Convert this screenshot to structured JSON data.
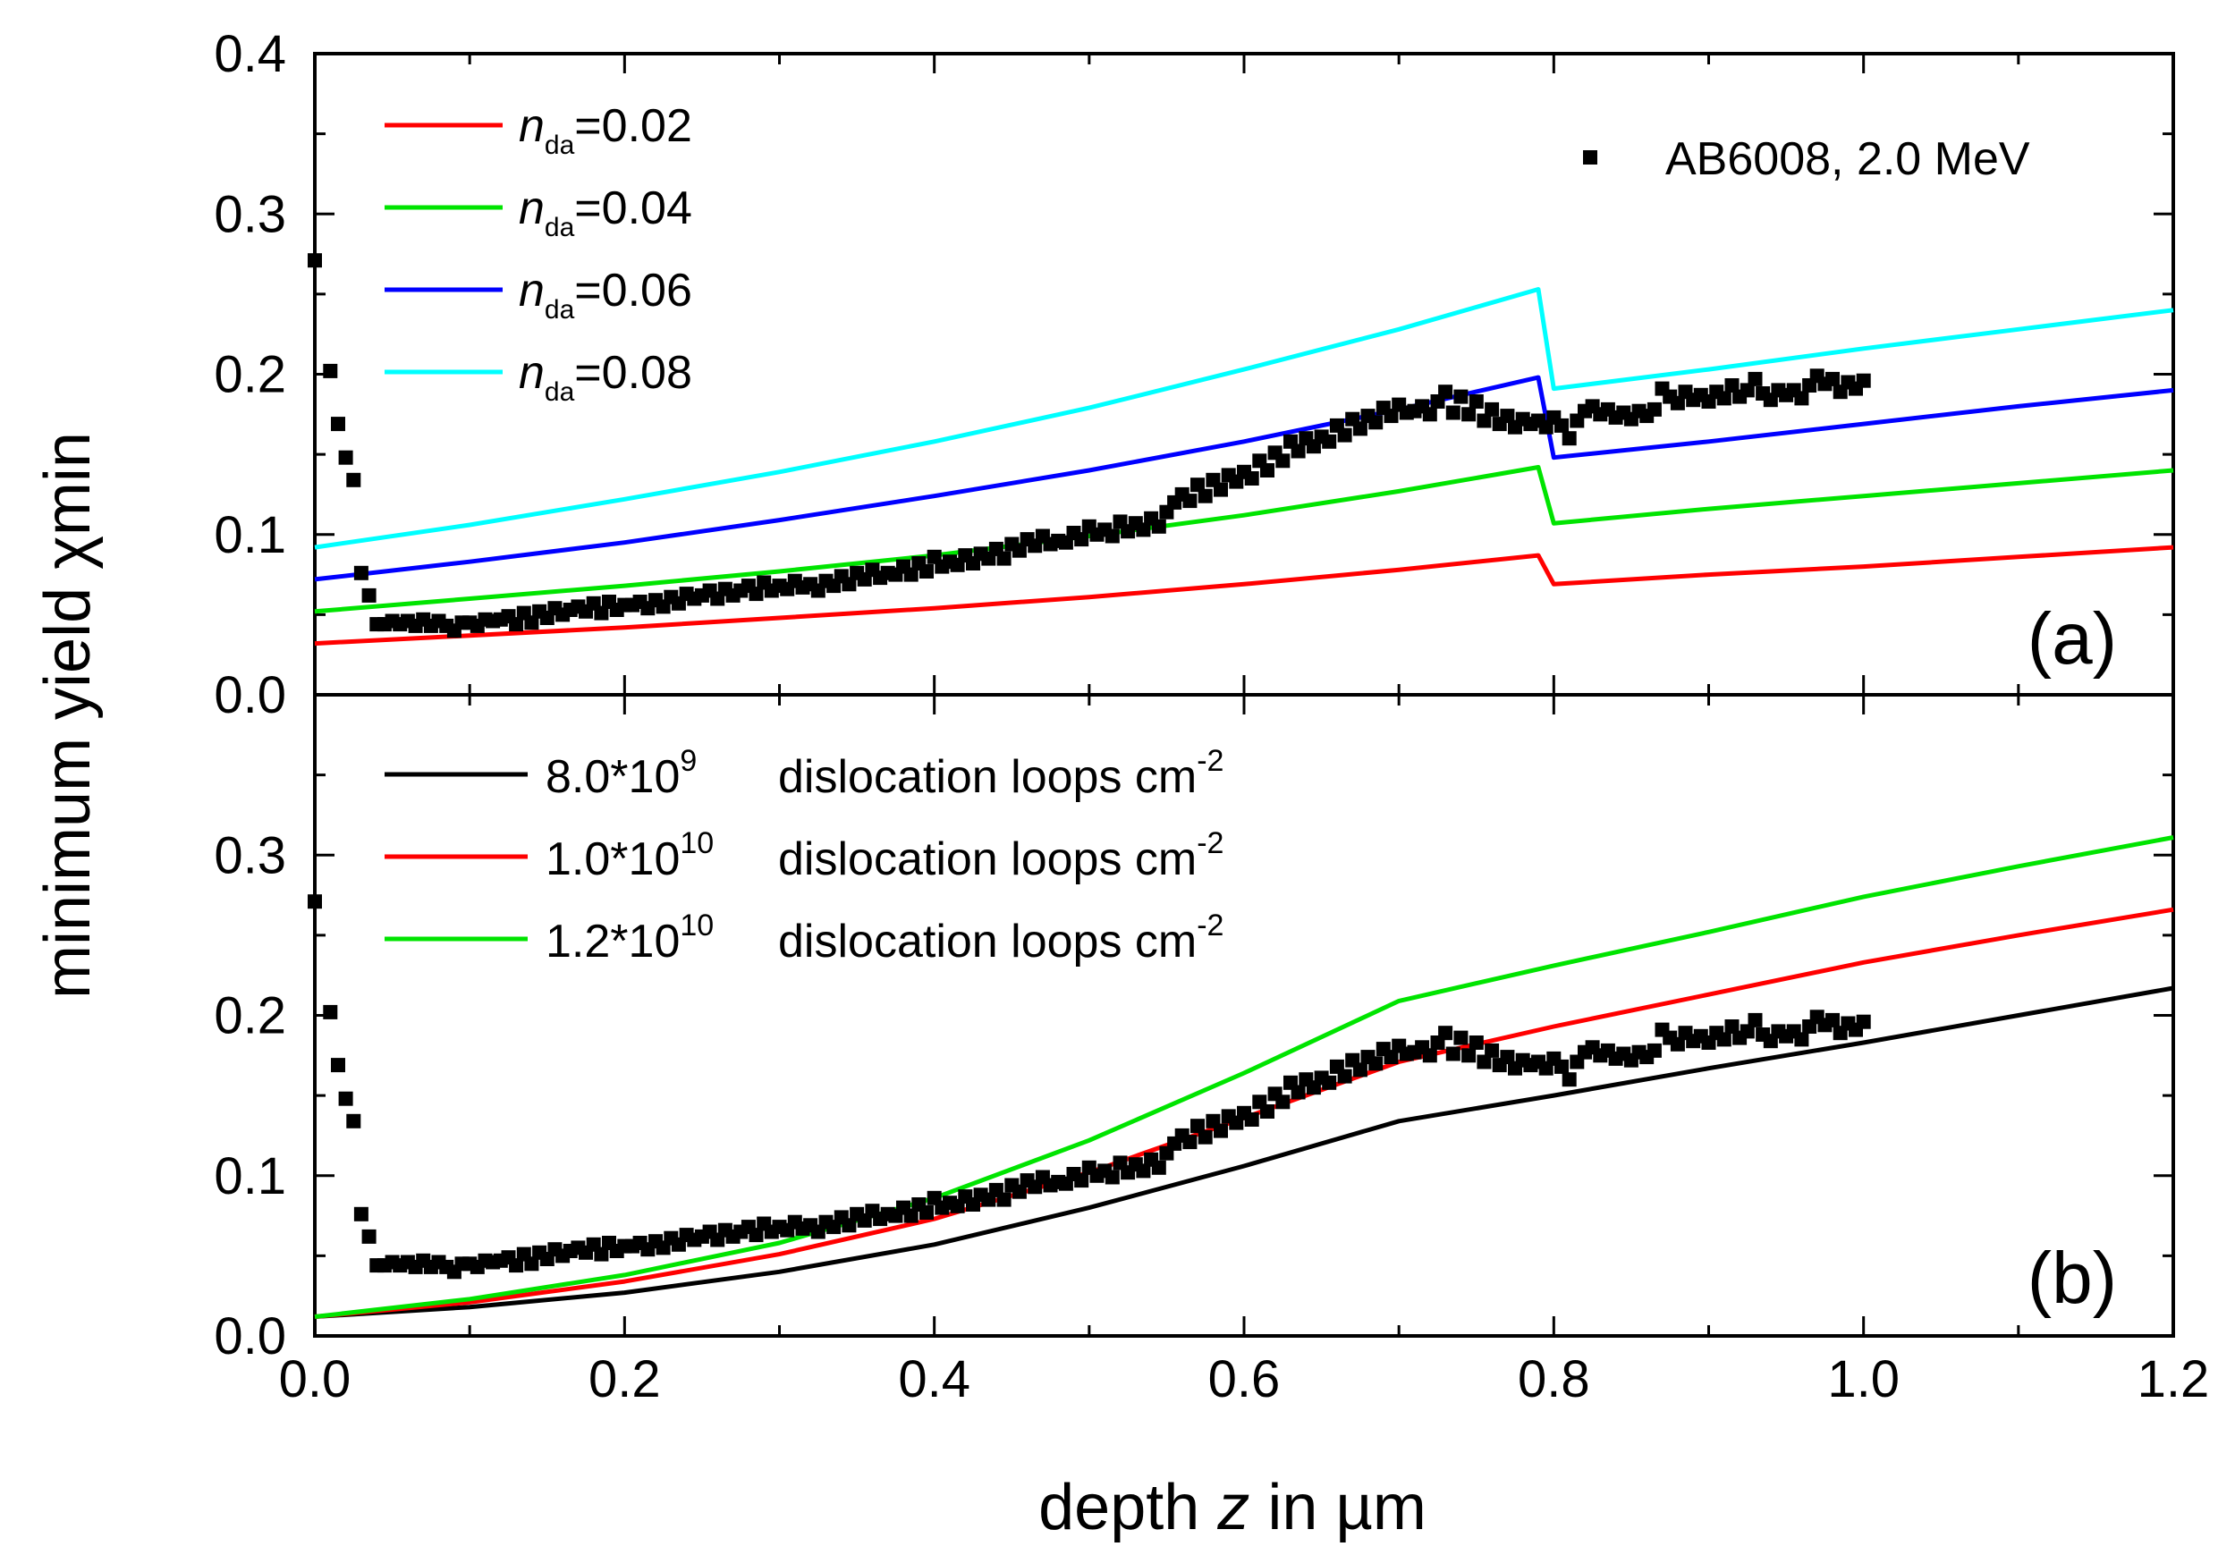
{
  "chart_data": {
    "type": "line",
    "ylabel": "minimum yield χmin",
    "xlabel": "depth z in µm",
    "xlim": [
      0.0,
      1.2
    ],
    "x_ticks": [
      "0.0",
      "0.2",
      "0.4",
      "0.6",
      "0.8",
      "1.0",
      "1.2"
    ],
    "measurement": {
      "name": "AB6008, 2.0 MeV",
      "x": [
        0.0,
        0.01,
        0.015,
        0.02,
        0.025,
        0.03,
        0.035,
        0.04,
        0.045,
        0.05,
        0.055,
        0.06,
        0.065,
        0.07,
        0.075,
        0.08,
        0.085,
        0.09,
        0.095,
        0.1,
        0.105,
        0.11,
        0.115,
        0.12,
        0.125,
        0.13,
        0.135,
        0.14,
        0.145,
        0.15,
        0.155,
        0.16,
        0.165,
        0.17,
        0.175,
        0.18,
        0.185,
        0.19,
        0.195,
        0.2,
        0.205,
        0.21,
        0.215,
        0.22,
        0.225,
        0.23,
        0.235,
        0.24,
        0.245,
        0.25,
        0.255,
        0.26,
        0.265,
        0.27,
        0.275,
        0.28,
        0.285,
        0.29,
        0.295,
        0.3,
        0.305,
        0.31,
        0.315,
        0.32,
        0.325,
        0.33,
        0.335,
        0.34,
        0.345,
        0.35,
        0.355,
        0.36,
        0.365,
        0.37,
        0.375,
        0.38,
        0.385,
        0.39,
        0.395,
        0.4,
        0.405,
        0.41,
        0.415,
        0.42,
        0.425,
        0.43,
        0.435,
        0.44,
        0.445,
        0.45,
        0.455,
        0.46,
        0.465,
        0.47,
        0.475,
        0.48,
        0.485,
        0.49,
        0.495,
        0.5,
        0.505,
        0.51,
        0.515,
        0.52,
        0.525,
        0.53,
        0.535,
        0.54,
        0.545,
        0.55,
        0.555,
        0.56,
        0.565,
        0.57,
        0.575,
        0.58,
        0.585,
        0.59,
        0.595,
        0.6,
        0.605,
        0.61,
        0.615,
        0.62,
        0.625,
        0.63,
        0.635,
        0.64,
        0.645,
        0.65,
        0.655,
        0.66,
        0.665,
        0.67,
        0.675,
        0.68,
        0.685,
        0.69,
        0.695,
        0.7,
        0.705,
        0.71,
        0.715,
        0.72,
        0.725,
        0.73,
        0.735,
        0.74,
        0.745,
        0.75,
        0.755,
        0.76,
        0.765,
        0.77,
        0.775,
        0.78,
        0.785,
        0.79,
        0.795,
        0.8,
        0.805,
        0.81,
        0.815,
        0.82,
        0.825,
        0.83,
        0.835,
        0.84,
        0.845,
        0.85,
        0.855,
        0.86,
        0.865,
        0.87,
        0.875,
        0.88,
        0.885,
        0.89,
        0.895,
        0.9,
        0.905,
        0.91,
        0.915,
        0.92,
        0.925,
        0.93,
        0.935,
        0.94,
        0.945,
        0.95,
        0.955,
        0.96,
        0.965,
        0.97,
        0.975,
        0.98,
        0.985,
        0.99,
        0.995,
        1.0
      ],
      "y": [
        0.271,
        0.202,
        0.169,
        0.148,
        0.134,
        0.076,
        0.062,
        0.044,
        0.044,
        0.046,
        0.044,
        0.046,
        0.043,
        0.047,
        0.043,
        0.046,
        0.043,
        0.04,
        0.045,
        0.045,
        0.043,
        0.047,
        0.046,
        0.047,
        0.049,
        0.044,
        0.051,
        0.045,
        0.052,
        0.048,
        0.054,
        0.05,
        0.053,
        0.055,
        0.052,
        0.057,
        0.051,
        0.058,
        0.053,
        0.056,
        0.056,
        0.058,
        0.054,
        0.059,
        0.055,
        0.061,
        0.057,
        0.063,
        0.06,
        0.062,
        0.065,
        0.06,
        0.066,
        0.062,
        0.065,
        0.068,
        0.063,
        0.07,
        0.065,
        0.068,
        0.066,
        0.071,
        0.067,
        0.069,
        0.065,
        0.071,
        0.068,
        0.074,
        0.069,
        0.076,
        0.072,
        0.078,
        0.073,
        0.076,
        0.075,
        0.08,
        0.075,
        0.082,
        0.077,
        0.086,
        0.08,
        0.083,
        0.081,
        0.087,
        0.082,
        0.088,
        0.085,
        0.091,
        0.085,
        0.094,
        0.09,
        0.097,
        0.093,
        0.099,
        0.094,
        0.096,
        0.095,
        0.101,
        0.097,
        0.105,
        0.1,
        0.103,
        0.099,
        0.108,
        0.102,
        0.107,
        0.103,
        0.11,
        0.105,
        0.114,
        0.12,
        0.125,
        0.121,
        0.131,
        0.124,
        0.134,
        0.128,
        0.137,
        0.133,
        0.139,
        0.135,
        0.146,
        0.14,
        0.151,
        0.146,
        0.158,
        0.152,
        0.16,
        0.155,
        0.161,
        0.158,
        0.168,
        0.162,
        0.172,
        0.166,
        0.174,
        0.17,
        0.179,
        0.174,
        0.181,
        0.176,
        0.177,
        0.18,
        0.175,
        0.183,
        0.189,
        0.176,
        0.186,
        0.175,
        0.183,
        0.171,
        0.178,
        0.169,
        0.174,
        0.167,
        0.172,
        0.169,
        0.171,
        0.167,
        0.173,
        0.168,
        0.16,
        0.171,
        0.177,
        0.18,
        0.175,
        0.178,
        0.173,
        0.176,
        0.172,
        0.177,
        0.174,
        0.178,
        0.191,
        0.186,
        0.182,
        0.189,
        0.184,
        0.187,
        0.183,
        0.189,
        0.185,
        0.193,
        0.186,
        0.19,
        0.197,
        0.188,
        0.184,
        0.19,
        0.187,
        0.19,
        0.185,
        0.193,
        0.199,
        0.194,
        0.197,
        0.189,
        0.195,
        0.191,
        0.196
      ]
    },
    "panels": [
      {
        "label": "(a)",
        "ylim": [
          0.0,
          0.4
        ],
        "y_ticks": [
          "0.0",
          "0.1",
          "0.2",
          "0.3",
          "0.4"
        ],
        "series": [
          {
            "name_italic": "n",
            "name_sub": "da",
            "name_rest": "=0.02",
            "color": "#ff0000",
            "x": [
              0.0,
              0.1,
              0.2,
              0.3,
              0.4,
              0.5,
              0.6,
              0.7,
              0.79,
              0.8,
              0.9,
              1.0,
              1.1,
              1.2
            ],
            "y": [
              0.032,
              0.037,
              0.042,
              0.048,
              0.054,
              0.061,
              0.069,
              0.078,
              0.087,
              0.069,
              0.075,
              0.08,
              0.086,
              0.092
            ]
          },
          {
            "name_italic": "n",
            "name_sub": "da",
            "name_rest": "=0.04",
            "color": "#00e400",
            "x": [
              0.0,
              0.1,
              0.2,
              0.3,
              0.4,
              0.5,
              0.6,
              0.7,
              0.79,
              0.8,
              0.9,
              1.0,
              1.1,
              1.2
            ],
            "y": [
              0.052,
              0.06,
              0.068,
              0.077,
              0.087,
              0.099,
              0.112,
              0.127,
              0.142,
              0.107,
              0.116,
              0.124,
              0.132,
              0.14
            ]
          },
          {
            "name_italic": "n",
            "name_sub": "da",
            "name_rest": "=0.06",
            "color": "#0000ff",
            "x": [
              0.0,
              0.1,
              0.2,
              0.3,
              0.4,
              0.5,
              0.6,
              0.7,
              0.79,
              0.8,
              0.9,
              1.0,
              1.1,
              1.2
            ],
            "y": [
              0.072,
              0.083,
              0.095,
              0.109,
              0.124,
              0.14,
              0.158,
              0.178,
              0.198,
              0.148,
              0.158,
              0.169,
              0.18,
              0.19
            ]
          },
          {
            "name_italic": "n",
            "name_sub": "da",
            "name_rest": "=0.08",
            "color": "#00ffff",
            "x": [
              0.0,
              0.1,
              0.2,
              0.3,
              0.4,
              0.5,
              0.6,
              0.7,
              0.79,
              0.8,
              0.9,
              1.0,
              1.1,
              1.2
            ],
            "y": [
              0.092,
              0.106,
              0.122,
              0.139,
              0.158,
              0.179,
              0.203,
              0.228,
              0.253,
              0.191,
              0.203,
              0.216,
              0.228,
              0.24
            ]
          }
        ]
      },
      {
        "label": "(b)",
        "ylim": [
          0.0,
          0.4
        ],
        "y_ticks": [
          "0.0",
          "0.1",
          "0.2",
          "0.3"
        ],
        "series": [
          {
            "name_main": "8.0*10",
            "name_exp": "9",
            "name_tail": "dislocation loops cm",
            "name_tail_exp": "-2",
            "color": "#000000",
            "x": [
              0.0,
              0.1,
              0.2,
              0.3,
              0.4,
              0.5,
              0.6,
              0.7,
              0.8,
              0.9,
              1.0,
              1.1,
              1.2
            ],
            "y": [
              0.012,
              0.018,
              0.027,
              0.04,
              0.057,
              0.08,
              0.106,
              0.134,
              0.15,
              0.167,
              0.183,
              0.2,
              0.217
            ]
          },
          {
            "name_main": "1.0*10",
            "name_exp": "10",
            "name_tail": "dislocation loops cm",
            "name_tail_exp": "-2",
            "color": "#ff0000",
            "x": [
              0.0,
              0.1,
              0.2,
              0.3,
              0.4,
              0.5,
              0.6,
              0.7,
              0.8,
              0.9,
              1.0,
              1.1,
              1.2
            ],
            "y": [
              0.012,
              0.021,
              0.034,
              0.051,
              0.073,
              0.102,
              0.136,
              0.171,
              0.193,
              0.213,
              0.233,
              0.25,
              0.266
            ]
          },
          {
            "name_main": "1.2*10",
            "name_exp": "10",
            "name_tail": "dislocation loops cm",
            "name_tail_exp": "-2",
            "color": "#00e400",
            "x": [
              0.0,
              0.1,
              0.2,
              0.3,
              0.4,
              0.5,
              0.6,
              0.7,
              0.8,
              0.9,
              1.0,
              1.1,
              1.2
            ],
            "y": [
              0.012,
              0.023,
              0.038,
              0.058,
              0.086,
              0.122,
              0.164,
              0.209,
              0.231,
              0.252,
              0.274,
              0.293,
              0.311
            ]
          }
        ]
      }
    ]
  },
  "text": {
    "ylabel": "minimum yield χmin",
    "xlabel_pre": "depth ",
    "xlabel_var": "z",
    "xlabel_post": " in µm",
    "measurement_legend": "AB6008, 2.0 MeV",
    "panel_a": "(a)",
    "panel_b": "(b)"
  }
}
